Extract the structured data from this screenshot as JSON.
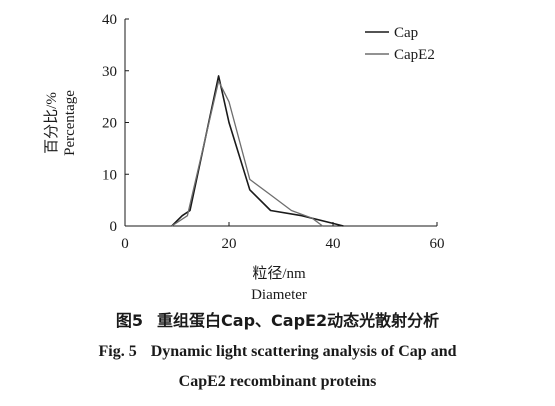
{
  "chart_data": {
    "type": "line",
    "xlabel_zh": "粒径/nm",
    "xlabel_en": "Diameter",
    "ylabel_zh": "百分比/%",
    "ylabel_en": "Percentage",
    "xlim": [
      0,
      60
    ],
    "ylim": [
      0,
      40
    ],
    "xticks": [
      "0",
      "20",
      "40",
      "60"
    ],
    "yticks": [
      "0",
      "10",
      "20",
      "30",
      "40"
    ],
    "grid": false,
    "legend_position": "top-right",
    "series": [
      {
        "name": "Cap",
        "color": "#1a1a1a",
        "x": [
          9,
          11,
          12.5,
          18,
          20,
          24,
          28,
          34,
          40,
          42
        ],
        "y": [
          0,
          2,
          3,
          29,
          20,
          7,
          3,
          2,
          0.5,
          0
        ]
      },
      {
        "name": "CapE2",
        "color": "#6e6e6e",
        "x": [
          9,
          12,
          18,
          20,
          24,
          28,
          32,
          36,
          38
        ],
        "y": [
          0,
          2,
          28,
          24,
          9,
          6,
          3,
          1.5,
          0
        ]
      }
    ]
  },
  "caption": {
    "zh_num": "图5",
    "zh_text": "重组蛋白Cap、CapE2动态光散射分析",
    "en_num": "Fig. 5",
    "en_line1": "Dynamic light scattering analysis of Cap and",
    "en_line2": "CapE2 recombinant proteins"
  }
}
